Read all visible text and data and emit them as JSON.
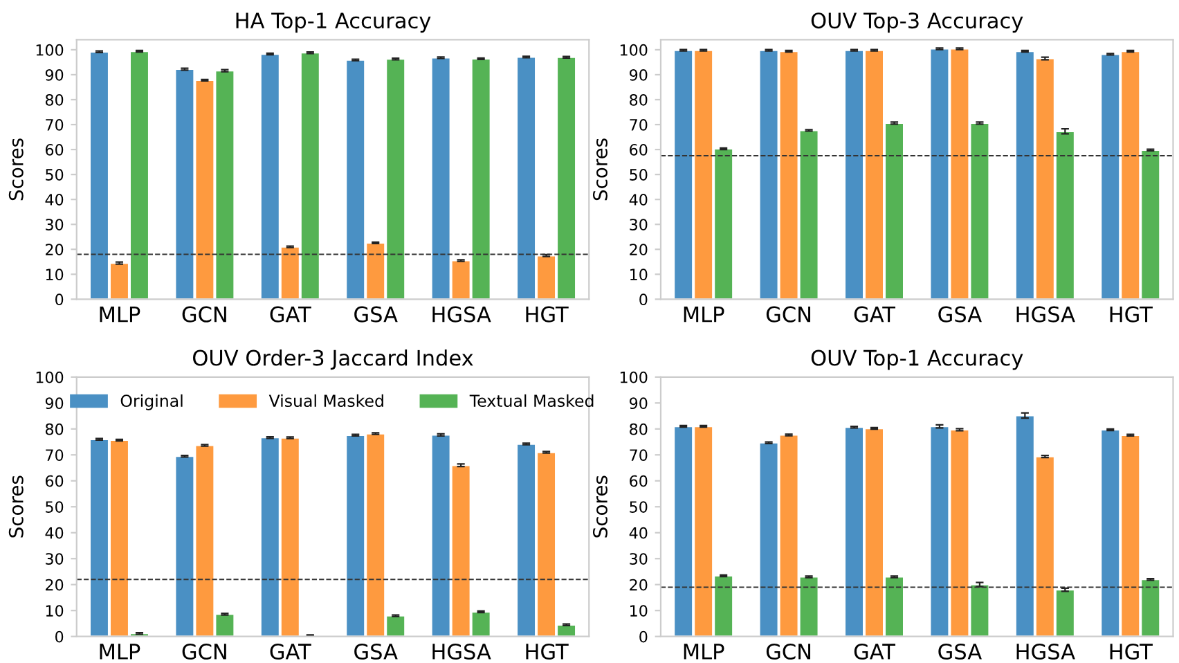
{
  "chart_data": [
    {
      "type": "bar",
      "title": "HA Top-1 Accuracy",
      "ylabel": "Scores",
      "categories": [
        "MLP",
        "GCN",
        "GAT",
        "GSA",
        "HGSA",
        "HGT"
      ],
      "ylim": [
        0,
        104
      ],
      "yticks": [
        0,
        10,
        20,
        30,
        40,
        50,
        60,
        70,
        80,
        90,
        100
      ],
      "grid": false,
      "legend": false,
      "series": [
        {
          "color": "#4a90c4",
          "values": [
            99.2,
            92.2,
            98.3,
            95.9,
            96.8,
            97.1
          ],
          "errors": [
            0.3,
            0.4,
            0.3,
            0.3,
            0.3,
            0.3
          ]
        },
        {
          "color": "#fe9a3f",
          "values": [
            14.5,
            87.8,
            21,
            22.6,
            15.5,
            17.5
          ],
          "errors": [
            0.4,
            0.3,
            0.3,
            0.3,
            0.3,
            0.4
          ]
        },
        {
          "color": "#55b355",
          "values": [
            99.4,
            91.6,
            98.8,
            96.3,
            96.4,
            97
          ],
          "errors": [
            0.3,
            0.4,
            0.3,
            0.3,
            0.3,
            0.3
          ]
        }
      ],
      "ref_lines": [
        {
          "axis": "y",
          "value": 18,
          "label": null,
          "color": "#333333",
          "line_style": "dashed"
        }
      ]
    },
    {
      "type": "bar",
      "title": "OUV Top-3 Accuracy",
      "ylabel": "Scores",
      "categories": [
        "MLP",
        "GCN",
        "GAT",
        "GSA",
        "HGSA",
        "HGT"
      ],
      "ylim": [
        0,
        104
      ],
      "yticks": [
        0,
        10,
        20,
        30,
        40,
        50,
        60,
        70,
        80,
        90,
        100
      ],
      "grid": false,
      "legend": false,
      "series": [
        {
          "color": "#4a90c4",
          "values": [
            99.8,
            99.8,
            99.8,
            100.4,
            99.4,
            98.2
          ],
          "errors": [
            0.3,
            0.3,
            0.3,
            0.3,
            0.3,
            0.3
          ]
        },
        {
          "color": "#fe9a3f",
          "values": [
            99.8,
            99.4,
            99.8,
            100.4,
            96.5,
            99.4
          ],
          "errors": [
            0.3,
            0.3,
            0.3,
            0.3,
            0.5,
            0.3
          ]
        },
        {
          "color": "#55b355",
          "values": [
            60.3,
            67.7,
            70.6,
            70.6,
            67.3,
            59.8
          ],
          "errors": [
            0.3,
            0.3,
            0.4,
            0.4,
            1.0,
            0.3
          ]
        }
      ],
      "ref_lines": [
        {
          "axis": "y",
          "value": 57.5,
          "label": null,
          "color": "#333333",
          "line_style": "dashed"
        }
      ]
    },
    {
      "type": "bar",
      "title": "OUV Order-3 Jaccard Index",
      "ylabel": "Scores",
      "categories": [
        "MLP",
        "GCN",
        "GAT",
        "GSA",
        "HGSA",
        "HGT"
      ],
      "ylim": [
        0,
        100
      ],
      "yticks": [
        0,
        10,
        20,
        30,
        40,
        50,
        60,
        70,
        80,
        90,
        100
      ],
      "grid": false,
      "legend": "top",
      "series": [
        {
          "name": "Original",
          "color": "#4a90c4",
          "values": [
            76,
            69.5,
            76.7,
            77.6,
            77.7,
            74.2
          ],
          "errors": [
            0.3,
            0.3,
            0.3,
            0.3,
            0.4,
            0.3
          ]
        },
        {
          "name": "Visual Masked",
          "color": "#fe9a3f",
          "values": [
            75.7,
            73.7,
            76.6,
            78.2,
            66,
            71
          ],
          "errors": [
            0.3,
            0.3,
            0.3,
            0.3,
            0.5,
            0.3
          ]
        },
        {
          "name": "Textual Masked",
          "color": "#55b355",
          "values": [
            1.2,
            8.6,
            0.4,
            8,
            9.5,
            4.5
          ],
          "errors": [
            0.3,
            0.3,
            0.2,
            0.3,
            0.3,
            0.3
          ]
        }
      ],
      "ref_lines": [
        {
          "axis": "y",
          "value": 22,
          "label": null,
          "color": "#333333",
          "line_style": "dashed"
        }
      ]
    },
    {
      "type": "bar",
      "title": "OUV Top-1 Accuracy",
      "ylabel": "Scores",
      "categories": [
        "MLP",
        "GCN",
        "GAT",
        "GSA",
        "HGSA",
        "HGT"
      ],
      "ylim": [
        0,
        100
      ],
      "yticks": [
        0,
        10,
        20,
        30,
        40,
        50,
        60,
        70,
        80,
        90,
        100
      ],
      "grid": false,
      "legend": false,
      "series": [
        {
          "color": "#4a90c4",
          "values": [
            81,
            74.7,
            80.7,
            81,
            85.2,
            79.7
          ],
          "errors": [
            0.3,
            0.3,
            0.3,
            0.6,
            1.0,
            0.3
          ]
        },
        {
          "color": "#fe9a3f",
          "values": [
            81,
            77.7,
            80.2,
            79.7,
            69.4,
            77.6
          ],
          "errors": [
            0.3,
            0.3,
            0.3,
            0.4,
            0.4,
            0.3
          ]
        },
        {
          "color": "#55b355",
          "values": [
            23.4,
            23,
            23,
            20,
            18,
            22
          ],
          "errors": [
            0.3,
            0.3,
            0.3,
            0.8,
            0.6,
            0.3
          ]
        }
      ],
      "ref_lines": [
        {
          "axis": "y",
          "value": 19,
          "label": null,
          "color": "#333333",
          "line_style": "dashed"
        }
      ]
    }
  ]
}
